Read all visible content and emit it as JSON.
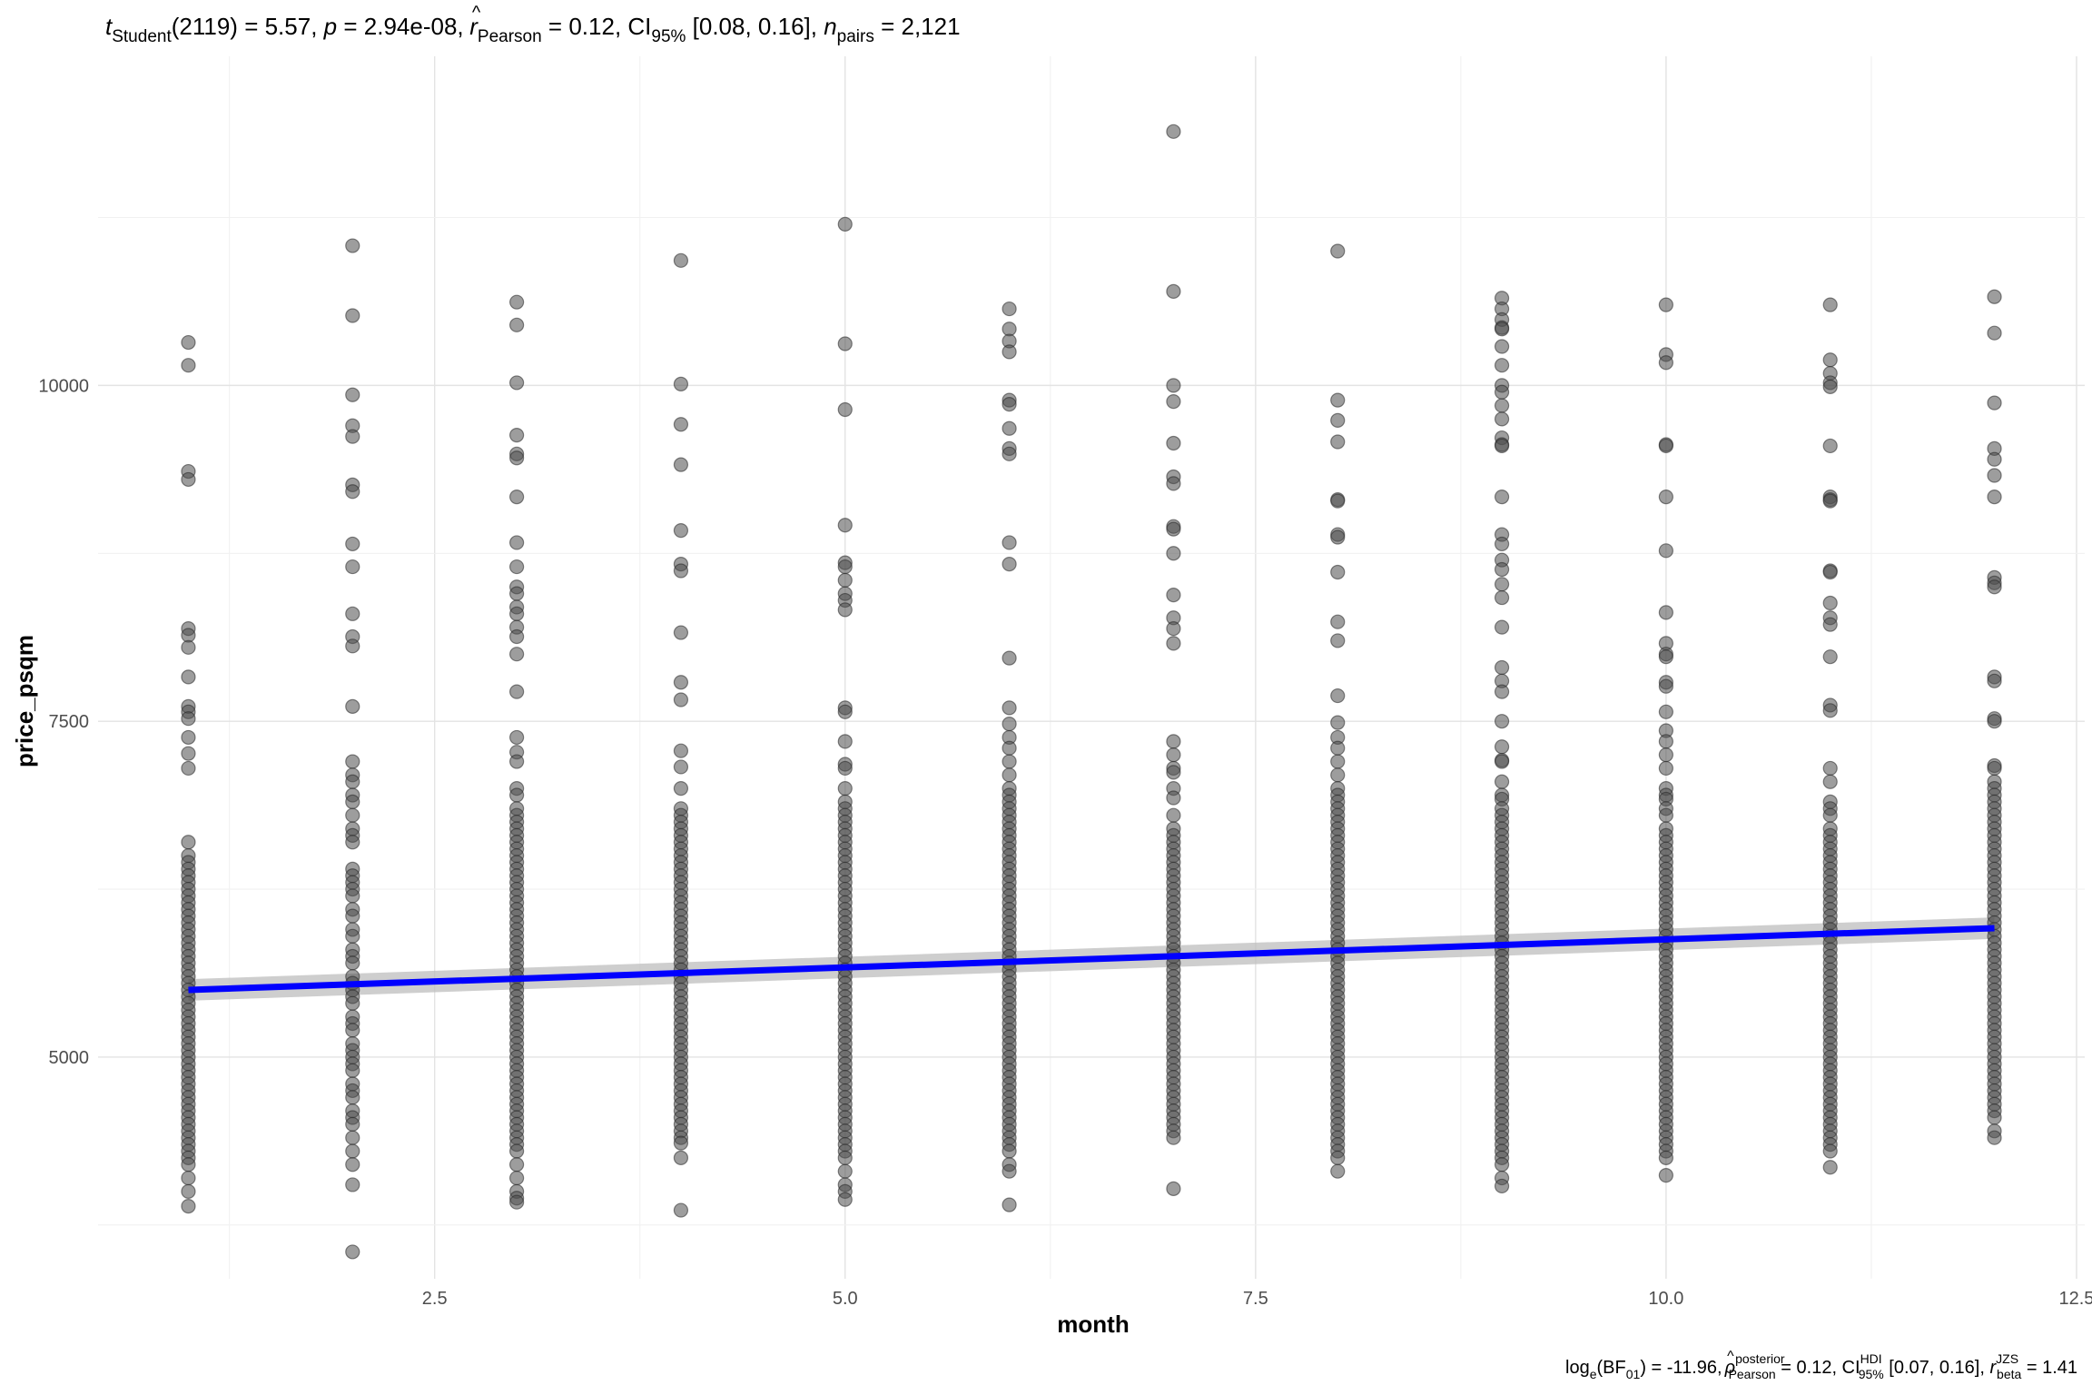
{
  "chart_data": {
    "type": "scatter",
    "subtitle": {
      "t_symbol": "t",
      "t_sub": "Student",
      "df": "(2119)",
      "t_value": " = 5.57, ",
      "p_symbol": "p",
      "p_value": " = 2.94e-08, ",
      "r_symbol": "r",
      "r_hat": "^",
      "r_sub": "Pearson",
      "r_value": " = 0.12, CI",
      "ci_sub": "95%",
      "ci_value": " [0.08, 0.16], ",
      "n_symbol": "n",
      "n_sub": "pairs",
      "n_value": " = 2,121"
    },
    "caption": {
      "log_text": "log",
      "log_sub": "e",
      "bf_open": "(BF",
      "bf_sub": "01",
      "bf_value": ") = -11.96, ",
      "rho_symbol": "ρ",
      "rho_hat": "^",
      "rho_sup": "posterior",
      "rho_sub": "Pearson",
      "rho_value": " = 0.12, CI",
      "ci_sup": "HDI",
      "ci_sub": "95%",
      "ci_value": " [0.07, 0.16], ",
      "r_symbol": "r",
      "r_sup": "JZS",
      "r_sub": "beta",
      "r_value": " = 1.41"
    },
    "xlabel": "month",
    "ylabel": "price_psqm",
    "xlim": [
      0.45,
      12.55
    ],
    "ylim": [
      3350,
      12450
    ],
    "x_ticks": [
      2.5,
      5.0,
      7.5,
      10.0,
      12.5
    ],
    "x_tick_labels": [
      "2.5",
      "5.0",
      "7.5",
      "10.0",
      "12.5"
    ],
    "y_ticks": [
      5000,
      7500,
      10000
    ],
    "y_tick_labels": [
      "5000",
      "7500",
      "10000"
    ],
    "grid": true,
    "point_color": "#4d4d4d",
    "regression_color": "#0000ff",
    "ci_band_color": "#bebebe",
    "regression": {
      "x": [
        1,
        12
      ],
      "y": [
        5500,
        5960
      ],
      "ci_lower": [
        5420,
        5880
      ],
      "ci_upper": [
        5580,
        6040
      ]
    },
    "points": [
      {
        "x": 1,
        "y": [
          10320,
          10150,
          9360,
          9300,
          8190,
          8140,
          8050,
          7830,
          7610,
          7570,
          7520,
          7380,
          7260,
          7150,
          6600,
          6500,
          6450,
          6400,
          6350,
          6300,
          6250,
          6200,
          6150,
          6100,
          6050,
          6000,
          5950,
          5900,
          5850,
          5800,
          5750,
          5700,
          5650,
          5600,
          5550,
          5500,
          5450,
          5400,
          5350,
          5300,
          5250,
          5200,
          5150,
          5100,
          5050,
          5000,
          4950,
          4900,
          4850,
          4800,
          4750,
          4700,
          4650,
          4600,
          4550,
          4500,
          4450,
          4400,
          4350,
          4300,
          4250,
          4200,
          4100,
          4000,
          3890
        ]
      },
      {
        "x": 2,
        "y": [
          11040,
          10520,
          9930,
          9700,
          9620,
          9260,
          9210,
          8820,
          8650,
          8300,
          8130,
          8060,
          7610,
          7200,
          7100,
          7050,
          6950,
          6900,
          6800,
          6700,
          6650,
          6600,
          6400,
          6350,
          6300,
          6250,
          6200,
          6100,
          6050,
          5950,
          5900,
          5800,
          5750,
          5700,
          5600,
          5550,
          5500,
          5450,
          5400,
          5300,
          5250,
          5200,
          5100,
          5050,
          5000,
          4950,
          4900,
          4800,
          4750,
          4700,
          4600,
          4550,
          4500,
          4400,
          4300,
          4200,
          4050,
          3550
        ]
      },
      {
        "x": 3,
        "y": [
          10620,
          10450,
          10020,
          9630,
          9490,
          9460,
          9170,
          8830,
          8650,
          8500,
          8450,
          8350,
          8300,
          8200,
          8130,
          8000,
          7720,
          7380,
          7270,
          7200,
          7000,
          6950,
          6850,
          6800,
          6750,
          6700,
          6650,
          6600,
          6550,
          6500,
          6450,
          6400,
          6350,
          6300,
          6250,
          6200,
          6150,
          6100,
          6050,
          6000,
          5950,
          5900,
          5850,
          5800,
          5750,
          5700,
          5650,
          5600,
          5550,
          5500,
          5450,
          5400,
          5350,
          5300,
          5250,
          5200,
          5150,
          5100,
          5050,
          5000,
          4950,
          4900,
          4850,
          4800,
          4750,
          4700,
          4650,
          4600,
          4550,
          4500,
          4450,
          4400,
          4350,
          4300,
          4200,
          4100,
          4000,
          3950,
          3920
        ]
      },
      {
        "x": 4,
        "y": [
          10930,
          10010,
          9710,
          9410,
          8920,
          8670,
          8620,
          8160,
          7790,
          7660,
          7280,
          7160,
          7000,
          6850,
          6800,
          6750,
          6700,
          6650,
          6600,
          6550,
          6500,
          6450,
          6400,
          6350,
          6300,
          6250,
          6200,
          6150,
          6100,
          6050,
          6000,
          5950,
          5900,
          5850,
          5800,
          5750,
          5700,
          5650,
          5600,
          5550,
          5500,
          5450,
          5400,
          5350,
          5300,
          5250,
          5200,
          5150,
          5100,
          5050,
          5000,
          4950,
          4900,
          4850,
          4800,
          4750,
          4700,
          4650,
          4600,
          4550,
          4500,
          4450,
          4400,
          4360,
          4250,
          3860
        ]
      },
      {
        "x": 5,
        "y": [
          11200,
          10310,
          9820,
          8960,
          8680,
          8650,
          8550,
          8450,
          8400,
          8330,
          7600,
          7570,
          7350,
          7180,
          7150,
          7000,
          6900,
          6850,
          6800,
          6750,
          6700,
          6650,
          6600,
          6550,
          6500,
          6450,
          6400,
          6350,
          6300,
          6250,
          6200,
          6150,
          6100,
          6050,
          6000,
          5950,
          5900,
          5850,
          5800,
          5750,
          5700,
          5650,
          5600,
          5550,
          5500,
          5450,
          5400,
          5350,
          5300,
          5250,
          5200,
          5150,
          5100,
          5050,
          5000,
          4950,
          4900,
          4850,
          4800,
          4750,
          4700,
          4650,
          4600,
          4550,
          4500,
          4450,
          4400,
          4350,
          4300,
          4250,
          4150,
          4050,
          4000,
          3940
        ]
      },
      {
        "x": 6,
        "y": [
          10570,
          10420,
          10330,
          10250,
          9890,
          9860,
          9680,
          9530,
          9490,
          8830,
          8670,
          7970,
          7600,
          7480,
          7380,
          7300,
          7200,
          7100,
          7000,
          6950,
          6900,
          6850,
          6800,
          6750,
          6700,
          6650,
          6600,
          6550,
          6500,
          6450,
          6400,
          6350,
          6300,
          6250,
          6200,
          6150,
          6100,
          6050,
          6000,
          5950,
          5900,
          5850,
          5800,
          5750,
          5700,
          5650,
          5600,
          5550,
          5500,
          5450,
          5400,
          5350,
          5300,
          5250,
          5200,
          5150,
          5100,
          5050,
          5000,
          4950,
          4900,
          4850,
          4800,
          4750,
          4700,
          4650,
          4600,
          4550,
          4500,
          4450,
          4400,
          4350,
          4300,
          4200,
          4150,
          3900
        ]
      },
      {
        "x": 7,
        "y": [
          11890,
          10700,
          10000,
          9880,
          9570,
          9320,
          9270,
          8950,
          8930,
          8750,
          8440,
          8270,
          8190,
          8080,
          7350,
          7250,
          7150,
          7120,
          7000,
          6930,
          6800,
          6700,
          6650,
          6600,
          6550,
          6500,
          6450,
          6400,
          6350,
          6300,
          6250,
          6200,
          6150,
          6100,
          6050,
          6000,
          5950,
          5900,
          5850,
          5800,
          5750,
          5700,
          5650,
          5600,
          5550,
          5500,
          5450,
          5400,
          5350,
          5300,
          5250,
          5200,
          5150,
          5100,
          5050,
          5000,
          4950,
          4900,
          4850,
          4800,
          4750,
          4700,
          4650,
          4600,
          4550,
          4500,
          4450,
          4400,
          4020
        ]
      },
      {
        "x": 8,
        "y": [
          11000,
          9890,
          9740,
          9580,
          9150,
          9140,
          8890,
          8870,
          8610,
          8240,
          8100,
          7690,
          7490,
          7380,
          7300,
          7200,
          7100,
          7000,
          6950,
          6900,
          6850,
          6800,
          6750,
          6700,
          6650,
          6600,
          6550,
          6500,
          6450,
          6400,
          6350,
          6300,
          6250,
          6200,
          6150,
          6100,
          6050,
          6000,
          5950,
          5900,
          5850,
          5800,
          5750,
          5700,
          5650,
          5600,
          5550,
          5500,
          5450,
          5400,
          5350,
          5300,
          5250,
          5200,
          5150,
          5100,
          5050,
          5000,
          4950,
          4900,
          4850,
          4800,
          4750,
          4700,
          4650,
          4600,
          4550,
          4500,
          4450,
          4400,
          4350,
          4300,
          4250,
          4150
        ]
      },
      {
        "x": 9,
        "y": [
          10650,
          10570,
          10490,
          10430,
          10420,
          10290,
          10150,
          10000,
          9950,
          9850,
          9750,
          9610,
          9560,
          9550,
          9170,
          8890,
          8820,
          8700,
          8630,
          8520,
          8420,
          8200,
          7900,
          7800,
          7720,
          7500,
          7310,
          7210,
          7200,
          7050,
          6950,
          6920,
          6850,
          6800,
          6750,
          6700,
          6650,
          6600,
          6550,
          6500,
          6450,
          6400,
          6350,
          6300,
          6250,
          6200,
          6150,
          6100,
          6050,
          6000,
          5950,
          5900,
          5850,
          5800,
          5750,
          5700,
          5650,
          5600,
          5550,
          5500,
          5450,
          5400,
          5350,
          5300,
          5250,
          5200,
          5150,
          5100,
          5050,
          5000,
          4950,
          4900,
          4850,
          4800,
          4750,
          4700,
          4650,
          4600,
          4550,
          4500,
          4450,
          4400,
          4350,
          4300,
          4250,
          4200,
          4100,
          4040
        ]
      },
      {
        "x": 10,
        "y": [
          10600,
          10230,
          10170,
          9560,
          9550,
          9170,
          8770,
          8310,
          8080,
          8000,
          7980,
          7790,
          7760,
          7570,
          7430,
          7350,
          7250,
          7150,
          7000,
          6950,
          6920,
          6850,
          6800,
          6700,
          6650,
          6600,
          6550,
          6500,
          6450,
          6400,
          6350,
          6300,
          6250,
          6200,
          6150,
          6100,
          6050,
          6000,
          5950,
          5900,
          5850,
          5800,
          5750,
          5700,
          5650,
          5600,
          5550,
          5500,
          5450,
          5400,
          5350,
          5300,
          5250,
          5200,
          5150,
          5100,
          5050,
          5000,
          4950,
          4900,
          4850,
          4800,
          4750,
          4700,
          4650,
          4600,
          4550,
          4500,
          4450,
          4400,
          4350,
          4300,
          4250,
          4120
        ]
      },
      {
        "x": 11,
        "y": [
          10600,
          10190,
          10090,
          10020,
          9990,
          9550,
          9170,
          9150,
          9140,
          8620,
          8610,
          8380,
          8270,
          8220,
          7980,
          7620,
          7580,
          7150,
          7050,
          6900,
          6850,
          6800,
          6700,
          6650,
          6600,
          6550,
          6500,
          6450,
          6400,
          6350,
          6300,
          6250,
          6200,
          6150,
          6100,
          6050,
          6000,
          5950,
          5900,
          5850,
          5800,
          5750,
          5700,
          5650,
          5600,
          5550,
          5500,
          5450,
          5400,
          5350,
          5300,
          5250,
          5200,
          5150,
          5100,
          5050,
          5000,
          4950,
          4900,
          4850,
          4800,
          4750,
          4700,
          4650,
          4600,
          4550,
          4500,
          4450,
          4400,
          4350,
          4300,
          4180
        ]
      },
      {
        "x": 12,
        "y": [
          10660,
          10390,
          9870,
          9530,
          9450,
          9330,
          9170,
          8570,
          8530,
          8500,
          7830,
          7800,
          7520,
          7500,
          7170,
          7150,
          7050,
          7000,
          6950,
          6900,
          6850,
          6800,
          6750,
          6700,
          6650,
          6600,
          6550,
          6500,
          6450,
          6400,
          6350,
          6300,
          6250,
          6200,
          6150,
          6100,
          6050,
          6000,
          5950,
          5900,
          5850,
          5800,
          5750,
          5700,
          5650,
          5600,
          5550,
          5500,
          5450,
          5400,
          5350,
          5300,
          5250,
          5200,
          5150,
          5100,
          5050,
          5000,
          4950,
          4900,
          4850,
          4800,
          4750,
          4700,
          4650,
          4600,
          4550,
          4450,
          4400
        ]
      }
    ]
  }
}
